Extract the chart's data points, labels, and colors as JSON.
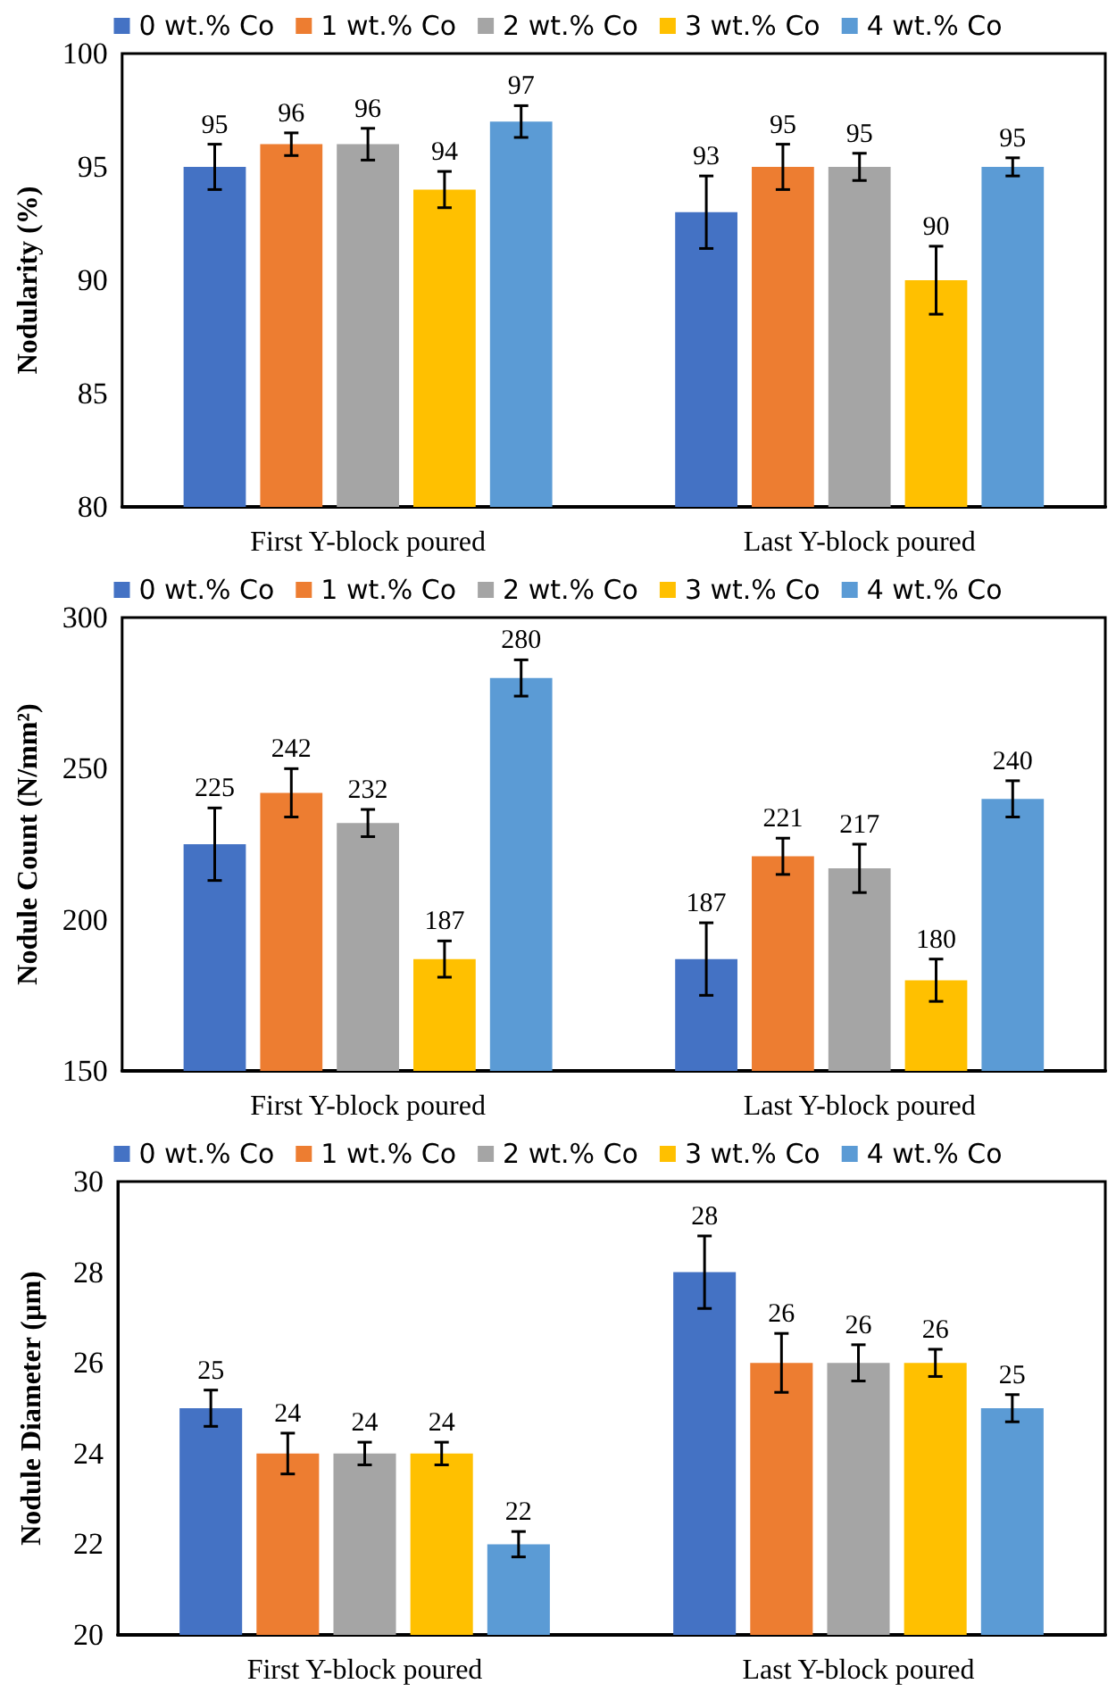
{
  "chart_data": [
    {
      "type": "bar",
      "ylabel": "Nodularity (%)",
      "categories": [
        "First Y-block poured",
        "Last Y-block poured"
      ],
      "ylim": [
        80,
        100
      ],
      "yticks": [
        80,
        85,
        90,
        95,
        100
      ],
      "grid": false,
      "legend": "top",
      "data_labels": true,
      "series": [
        {
          "name": "0 wt.% Co",
          "color": "#4472c4",
          "values": [
            95,
            93
          ],
          "errors": [
            1,
            1.6
          ]
        },
        {
          "name": "1 wt.% Co",
          "color": "#ed7d31",
          "values": [
            96,
            95
          ],
          "errors": [
            0.5,
            1
          ]
        },
        {
          "name": "2 wt.% Co",
          "color": "#a5a5a5",
          "values": [
            96,
            95
          ],
          "errors": [
            0.7,
            0.6
          ]
        },
        {
          "name": "3 wt.% Co",
          "color": "#ffc000",
          "values": [
            94,
            90
          ],
          "errors": [
            0.8,
            1.5
          ]
        },
        {
          "name": "4 wt.% Co",
          "color": "#5b9bd5",
          "values": [
            97,
            95
          ],
          "errors": [
            0.7,
            0.4
          ]
        }
      ]
    },
    {
      "type": "bar",
      "ylabel": "Nodule Count (N/mm²)",
      "categories": [
        "First Y-block poured",
        "Last Y-block poured"
      ],
      "ylim": [
        150,
        300
      ],
      "yticks": [
        150,
        200,
        250,
        300
      ],
      "grid": false,
      "legend": "top",
      "data_labels": true,
      "series": [
        {
          "name": "0 wt.% Co",
          "color": "#4472c4",
          "values": [
            225,
            187
          ],
          "errors": [
            12,
            12
          ]
        },
        {
          "name": "1 wt.% Co",
          "color": "#ed7d31",
          "values": [
            242,
            221
          ],
          "errors": [
            8,
            6
          ]
        },
        {
          "name": "2 wt.% Co",
          "color": "#a5a5a5",
          "values": [
            232,
            217
          ],
          "errors": [
            4.5,
            8
          ]
        },
        {
          "name": "3 wt.% Co",
          "color": "#ffc000",
          "values": [
            187,
            180
          ],
          "errors": [
            6,
            7
          ]
        },
        {
          "name": "4 wt.% Co",
          "color": "#5b9bd5",
          "values": [
            280,
            240
          ],
          "errors": [
            6,
            6
          ]
        }
      ]
    },
    {
      "type": "bar",
      "ylabel": "Nodule Diameter (µm)",
      "categories": [
        "First Y-block poured",
        "Last Y-block poured"
      ],
      "ylim": [
        20,
        30
      ],
      "yticks": [
        20,
        22,
        24,
        26,
        28,
        30
      ],
      "grid": false,
      "legend": "top",
      "data_labels": true,
      "series": [
        {
          "name": "0 wt.% Co",
          "color": "#4472c4",
          "values": [
            25,
            28
          ],
          "errors": [
            0.4,
            0.8
          ]
        },
        {
          "name": "1 wt.% Co",
          "color": "#ed7d31",
          "values": [
            24,
            26
          ],
          "errors": [
            0.45,
            0.65
          ]
        },
        {
          "name": "2 wt.% Co",
          "color": "#a5a5a5",
          "values": [
            24,
            26
          ],
          "errors": [
            0.25,
            0.4
          ]
        },
        {
          "name": "3 wt.% Co",
          "color": "#ffc000",
          "values": [
            24,
            26
          ],
          "errors": [
            0.25,
            0.3
          ]
        },
        {
          "name": "4 wt.% Co",
          "color": "#5b9bd5",
          "values": [
            22,
            25
          ],
          "errors": [
            0.28,
            0.3
          ]
        }
      ]
    }
  ]
}
